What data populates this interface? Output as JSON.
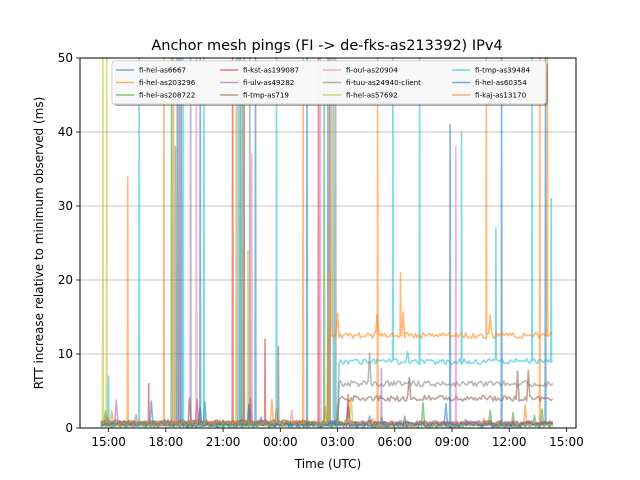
{
  "chart_data": {
    "type": "line",
    "title": "Anchor mesh pings (FI -> de-fks-as213392) IPv4",
    "xlabel": "Time (UTC)",
    "ylabel": "RTT increase relative to minimum observed (ms)",
    "ylim": [
      0,
      50
    ],
    "xlim_hours": [
      13.5,
      39.5
    ],
    "x_ticks": [
      {
        "hour": 15,
        "label": "15:00"
      },
      {
        "hour": 18,
        "label": "18:00"
      },
      {
        "hour": 21,
        "label": "21:00"
      },
      {
        "hour": 24,
        "label": "00:00"
      },
      {
        "hour": 27,
        "label": "03:00"
      },
      {
        "hour": 30,
        "label": "06:00"
      },
      {
        "hour": 33,
        "label": "09:00"
      },
      {
        "hour": 36,
        "label": "12:00"
      },
      {
        "hour": 39,
        "label": "15:00"
      }
    ],
    "y_ticks": [
      0,
      10,
      20,
      30,
      40,
      50
    ],
    "grid": "horizontal",
    "legend_placement": "top-center",
    "x_start_hour": 14.6,
    "x_end_hour": 38.3,
    "series": [
      {
        "name": "fi-hel-as6667",
        "color": "#1f77b4",
        "baseline": 0.5,
        "spikes": [
          [
            18.6,
            50
          ],
          [
            21.9,
            50
          ],
          [
            26.5,
            50
          ],
          [
            32.9,
            41
          ],
          [
            37.9,
            50
          ]
        ]
      },
      {
        "name": "fi-hel-as203296",
        "color": "#ff7f0e",
        "baseline": 0.6,
        "spikes": [
          [
            16.0,
            34
          ],
          [
            17.9,
            50
          ],
          [
            22.1,
            44
          ],
          [
            25.2,
            50
          ],
          [
            29.1,
            50
          ],
          [
            37.6,
            50
          ]
        ]
      },
      {
        "name": "fi-hel-as208722",
        "color": "#2ca02c",
        "baseline": 0.4,
        "spikes": [
          [
            18.3,
            50
          ],
          [
            22.0,
            48
          ],
          [
            26.3,
            44
          ]
        ]
      },
      {
        "name": "fi-kst-as199087",
        "color": "#d62728",
        "baseline": 0.7,
        "spikes": [
          [
            17.1,
            6
          ],
          [
            21.5,
            50
          ],
          [
            23.2,
            12
          ],
          [
            26.0,
            50
          ]
        ]
      },
      {
        "name": "fi-ulv-as49282",
        "color": "#9467bd",
        "baseline": 0.5,
        "spikes": [
          [
            19.3,
            50
          ],
          [
            22.1,
            50
          ],
          [
            29.3,
            8
          ]
        ]
      },
      {
        "name": "fi-tmp-as719",
        "color": "#8c564b",
        "baseline": 0.8,
        "spikes": [
          [
            18.7,
            50
          ],
          [
            23.9,
            11
          ],
          [
            26.6,
            50
          ]
        ],
        "step": {
          "from_hour": 27.0,
          "level": 4
        }
      },
      {
        "name": "fi-oul-as20904",
        "color": "#e377c2",
        "baseline": 0.6,
        "spikes": [
          [
            19.6,
            50
          ],
          [
            22.5,
            37
          ],
          [
            26.1,
            50
          ],
          [
            33.2,
            38
          ]
        ]
      },
      {
        "name": "fi-tuu-as24940-client",
        "color": "#7f7f7f",
        "baseline": 0.7,
        "spikes": [
          [
            18.5,
            38
          ],
          [
            22.4,
            50
          ],
          [
            26.9,
            50
          ]
        ],
        "step": {
          "from_hour": 27.0,
          "level": 6
        }
      },
      {
        "name": "fi-hel-as57692",
        "color": "#bcbd22",
        "baseline": 0.5,
        "spikes": [
          [
            14.7,
            50
          ],
          [
            14.9,
            50
          ],
          [
            22.3,
            24
          ],
          [
            26.5,
            21
          ]
        ]
      },
      {
        "name": "fi-tmp-as39484",
        "color": "#17becf",
        "baseline": 0.6,
        "spikes": [
          [
            15.0,
            7
          ],
          [
            16.6,
            50
          ],
          [
            18.9,
            50
          ],
          [
            20.0,
            50
          ],
          [
            21.8,
            50
          ],
          [
            23.8,
            50
          ],
          [
            26.8,
            50
          ],
          [
            29.9,
            50
          ],
          [
            31.3,
            50
          ],
          [
            33.5,
            40
          ],
          [
            35.3,
            27
          ],
          [
            37.2,
            50
          ],
          [
            38.2,
            31
          ]
        ],
        "step": {
          "from_hour": 27.0,
          "level": 9
        }
      },
      {
        "name": "fi-hel-as60354",
        "color": "#1f77b4",
        "baseline": 0.5,
        "spikes": [
          [
            18.8,
            50
          ],
          [
            19.8,
            50
          ],
          [
            22.7,
            50
          ],
          [
            25.4,
            50
          ],
          [
            35.6,
            50
          ]
        ]
      },
      {
        "name": "fi-kaj-as13170",
        "color": "#ff7f0e",
        "baseline": 0.7,
        "spikes": [
          [
            18.4,
            50
          ],
          [
            21.7,
            50
          ],
          [
            26.7,
            50
          ],
          [
            30.3,
            21
          ],
          [
            34.8,
            50
          ],
          [
            38.0,
            50
          ]
        ],
        "step": {
          "from_hour": 26.5,
          "level": 12.5
        }
      }
    ]
  }
}
